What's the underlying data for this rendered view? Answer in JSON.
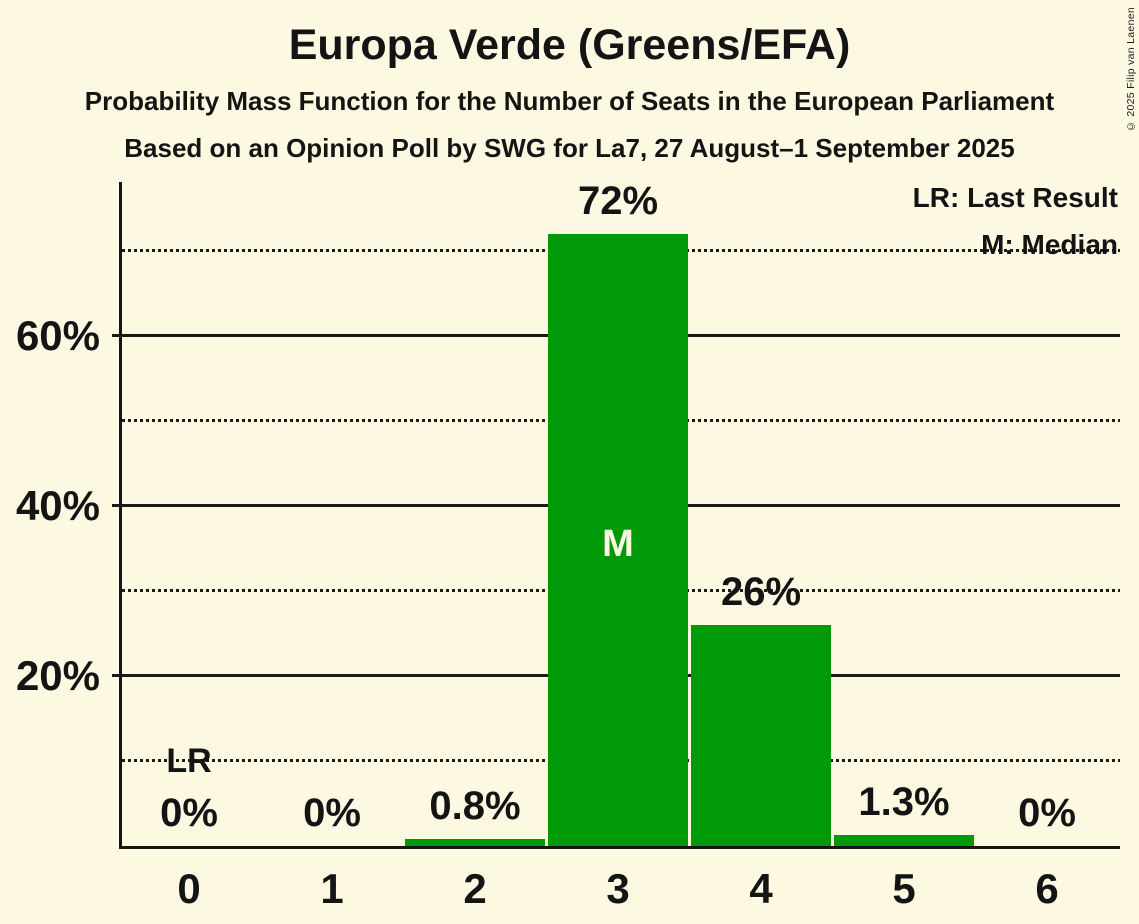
{
  "page": {
    "copyright": "© 2025 Filip van Laenen"
  },
  "colors": {
    "background": "#FCF8E2",
    "bar": "#009908",
    "text": "#141414",
    "gridline": "#1A1A1A",
    "median_marker_text": "#FCF8E2"
  },
  "chart_data": {
    "type": "bar",
    "title": "Europa Verde (Greens/EFA)",
    "subtitle": "Probability Mass Function for the Number of Seats in the European Parliament",
    "source": "Based on an Opinion Poll by SWG for La7, 27 August–1 September 2025",
    "categories": [
      "0",
      "1",
      "2",
      "3",
      "4",
      "5",
      "6"
    ],
    "values": [
      0,
      0,
      0.8,
      72,
      26,
      1.3,
      0
    ],
    "bar_labels": [
      "0%",
      "0%",
      "0.8%",
      "72%",
      "26%",
      "1.3%",
      "0%"
    ],
    "ylim": [
      0,
      78
    ],
    "y_ticks": [
      {
        "value": 20,
        "label": "20%"
      },
      {
        "value": 40,
        "label": "40%"
      },
      {
        "value": 60,
        "label": "60%"
      }
    ],
    "solid_gridlines": [
      20,
      40,
      60
    ],
    "dotted_gridlines": [
      10,
      30,
      50,
      70
    ],
    "grid": "horizontal",
    "legend_position": "top-right",
    "legend": {
      "lr": "LR: Last Result",
      "m": "M: Median"
    },
    "median": {
      "category": "3",
      "marker": "M"
    },
    "last_result": {
      "category": "0",
      "marker": "LR"
    }
  }
}
